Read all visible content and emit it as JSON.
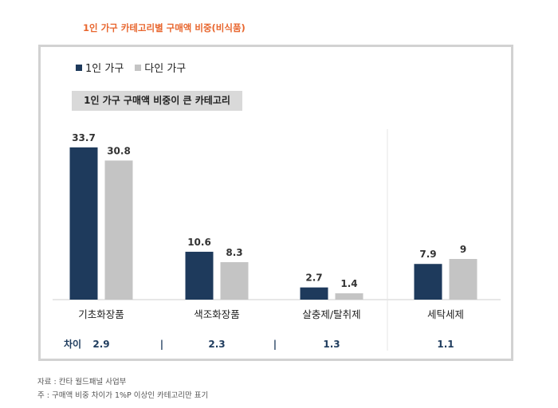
{
  "header": {
    "title": "1인 가구 카테고리별 구매액 비중(비식품)"
  },
  "highlight_label": "1인 가구 구매액 비중이 큰 카테고리",
  "diff_row": {
    "label": "차이",
    "separator": "|"
  },
  "footnotes": {
    "source": "자료 : 칸타 월드패널 사업부",
    "note": "주 : 구매액 비중 차이가 1%P 이상인 카테고리만 표기"
  },
  "colors": {
    "series1": "#1e3a5c",
    "series2": "#c4c4c4",
    "title": "#e8662e",
    "diff": "#1f3c5e"
  },
  "chart_data": {
    "type": "bar",
    "categories": [
      "기초화장품",
      "색조화장품",
      "살충제/탈취제",
      "세탁세제"
    ],
    "series": [
      {
        "name": "1인 가구",
        "values": [
          33.7,
          10.6,
          2.7,
          7.9
        ]
      },
      {
        "name": "다인 가구",
        "values": [
          30.8,
          8.3,
          1.4,
          9.0
        ]
      }
    ],
    "differences": [
      "2.9",
      "2.3",
      "1.3",
      "1.1"
    ],
    "ylim": [
      0,
      33.7
    ],
    "grid": false,
    "legend_position": "top-left"
  }
}
